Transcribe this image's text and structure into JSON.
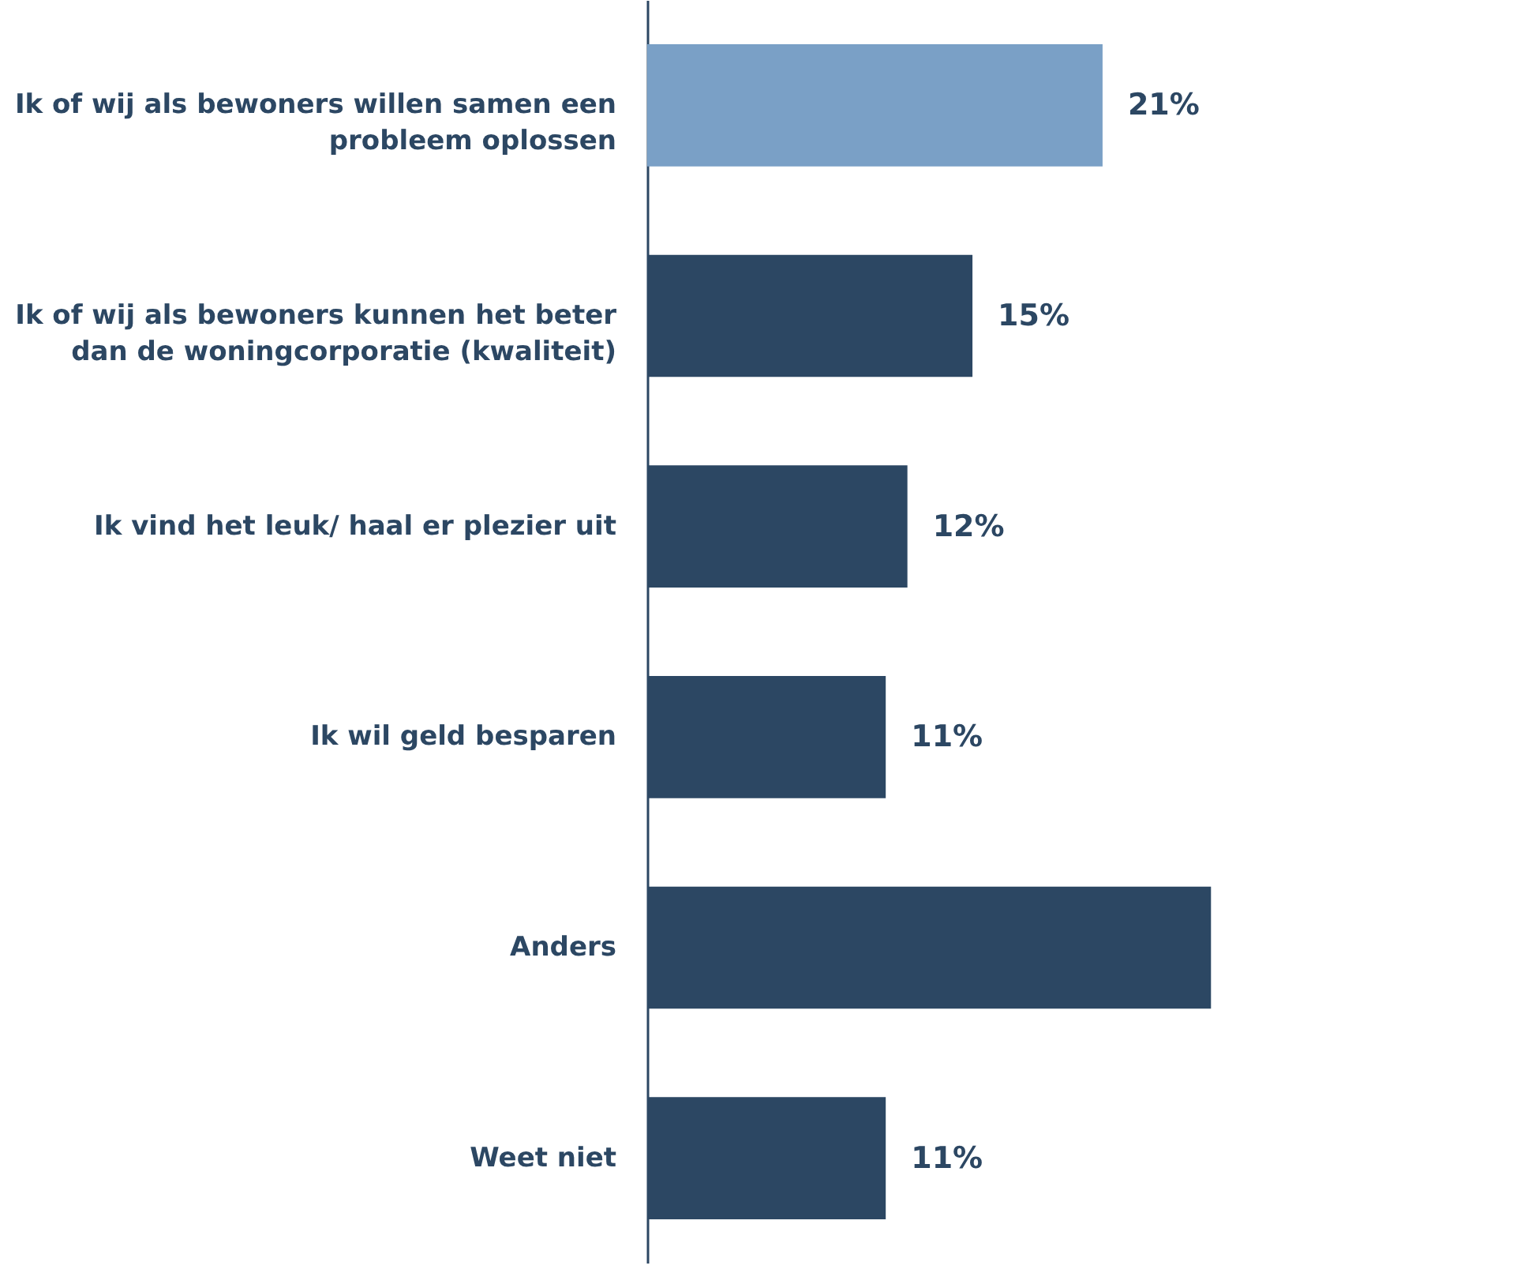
{
  "chart_data": {
    "type": "bar",
    "orientation": "horizontal",
    "categories": [
      "Ik of wij als bewoners willen samen een probleem oplossen",
      "Ik of wij als bewoners kunnen het beter dan de woningcorporatie (kwaliteit)",
      "Ik vind het leuk/ haal er plezier uit",
      "Ik wil geld besparen",
      "Anders",
      "Weet niet"
    ],
    "values": [
      21,
      15,
      12,
      11,
      26,
      11
    ],
    "colors": [
      "#7aa0c6",
      "#2c4763",
      "#2c4763",
      "#2c4763",
      "#2c4763",
      "#2c4763"
    ],
    "value_labels": [
      "21%",
      "15%",
      "12%",
      "11%",
      null,
      "11%"
    ]
  }
}
